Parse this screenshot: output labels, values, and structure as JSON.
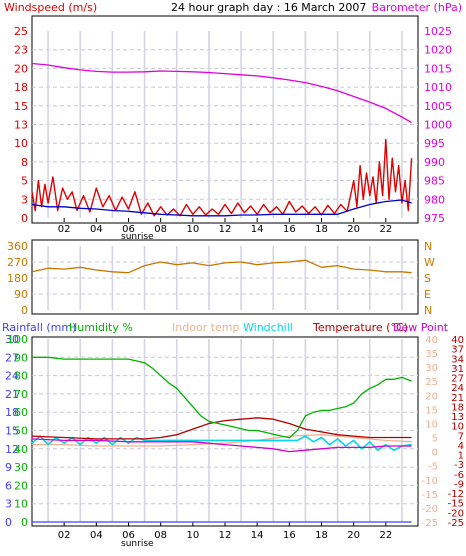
{
  "colors": {
    "wind": "#e00000",
    "baro": "#e000e0",
    "gust_avg": "#0000c8",
    "dir": "#c87800",
    "rain": "#4040ff",
    "humidity": "#00b400",
    "indoor": "#f0b090",
    "windchill": "#00d8e8",
    "temperature": "#b40000",
    "dewpoint": "#d000d0",
    "grid": "#c8c8d8",
    "vgrid": "#d4d4e4",
    "axis": "#000000"
  },
  "chart_data": [
    {
      "type": "line",
      "title": "24 hour graph day : 16 March 2007",
      "left_label": "Windspeed (m/s)",
      "right_label": "Barometer (hPa)",
      "left_ticks": [
        "0",
        "3",
        "5",
        "8",
        "10",
        "13",
        "15",
        "18",
        "20",
        "23",
        "25"
      ],
      "right_ticks": [
        "975",
        "980",
        "985",
        "990",
        "995",
        "1000",
        "1005",
        "1010",
        "1015",
        "1020",
        "1025"
      ],
      "x_ticks": [
        "02",
        "04",
        "06",
        "08",
        "10",
        "12",
        "14",
        "16",
        "18",
        "20",
        "22"
      ],
      "sunrise_label": "sunrise",
      "sunrise_hour": 5.8,
      "xlim": [
        0,
        24
      ],
      "ylim_left": [
        0,
        25
      ],
      "ylim_right": [
        975,
        1025
      ],
      "grid": true,
      "series": [
        {
          "key": "baro",
          "axis": "right",
          "hours": [
            0,
            1,
            2,
            3,
            4,
            5,
            6,
            7,
            8,
            9,
            10,
            11,
            12,
            13,
            14,
            15,
            16,
            17,
            18,
            19,
            20,
            21,
            22,
            23,
            23.6
          ],
          "values": [
            1016.3,
            1015.9,
            1015.2,
            1014.6,
            1014.2,
            1014.0,
            1014.0,
            1014.1,
            1014.3,
            1014.2,
            1014.1,
            1013.9,
            1013.6,
            1013.3,
            1013.0,
            1012.5,
            1011.9,
            1011.2,
            1010.2,
            1009.0,
            1007.5,
            1006.0,
            1004.3,
            1002.0,
            1000.5
          ]
        },
        {
          "key": "wind",
          "axis": "left",
          "hours": [
            0,
            0.2,
            0.4,
            0.6,
            0.8,
            1.0,
            1.3,
            1.6,
            1.9,
            2.2,
            2.5,
            2.8,
            3.2,
            3.6,
            4.0,
            4.4,
            4.8,
            5.2,
            5.6,
            6.0,
            6.4,
            6.8,
            7.2,
            7.6,
            8.0,
            8.4,
            8.8,
            9.2,
            9.6,
            10.0,
            10.4,
            10.8,
            11.2,
            11.6,
            12.0,
            12.4,
            12.8,
            13.2,
            13.6,
            14.0,
            14.4,
            14.8,
            15.2,
            15.6,
            16.0,
            16.4,
            16.8,
            17.2,
            17.6,
            18.0,
            18.4,
            18.8,
            19.2,
            19.6,
            20.0,
            20.2,
            20.4,
            20.6,
            20.8,
            21.0,
            21.2,
            21.4,
            21.6,
            21.8,
            22.0,
            22.2,
            22.4,
            22.6,
            22.8,
            23.0,
            23.2,
            23.4,
            23.6
          ],
          "values": [
            3.5,
            1.0,
            5.0,
            1.5,
            4.5,
            2.0,
            5.5,
            1.0,
            4.0,
            2.5,
            3.5,
            1.0,
            3.0,
            0.8,
            4.0,
            1.5,
            3.0,
            1.0,
            2.8,
            1.2,
            3.5,
            0.5,
            2.0,
            0.3,
            1.5,
            0.4,
            1.2,
            0.3,
            1.8,
            0.5,
            1.5,
            0.4,
            1.2,
            0.5,
            1.8,
            0.6,
            2.0,
            0.7,
            1.6,
            0.5,
            1.8,
            0.7,
            1.5,
            0.5,
            2.2,
            0.8,
            1.6,
            0.6,
            1.5,
            0.4,
            1.7,
            0.6,
            1.8,
            0.9,
            5.0,
            1.5,
            7.0,
            2.5,
            6.0,
            3.0,
            5.5,
            2.0,
            7.5,
            3.0,
            10.5,
            2.5,
            8.0,
            3.5,
            7.0,
            2.0,
            5.0,
            1.0,
            8.0
          ]
        },
        {
          "key": "gust_avg",
          "axis": "left",
          "hours": [
            0,
            1,
            2,
            3,
            4,
            5,
            6,
            7,
            8,
            9,
            10,
            11,
            12,
            13,
            14,
            15,
            16,
            17,
            18,
            19,
            20,
            21,
            22,
            23,
            23.6
          ],
          "values": [
            1.8,
            1.5,
            1.5,
            1.3,
            1.2,
            1.0,
            0.9,
            0.7,
            0.5,
            0.4,
            0.3,
            0.3,
            0.3,
            0.4,
            0.4,
            0.5,
            0.5,
            0.5,
            0.5,
            0.5,
            1.2,
            1.8,
            2.2,
            2.4,
            2.0
          ]
        }
      ]
    },
    {
      "type": "line",
      "title": "",
      "left_ticks": [
        "360",
        "270",
        "180",
        "90",
        "0"
      ],
      "right_ticks": [
        "N",
        "W",
        "S",
        "E",
        "N"
      ],
      "ylim": [
        0,
        360
      ],
      "xlim": [
        0,
        24
      ],
      "grid": true,
      "series": [
        {
          "key": "dir",
          "hours": [
            0,
            1,
            2,
            3,
            4,
            5,
            6,
            7,
            8,
            9,
            10,
            11,
            12,
            13,
            14,
            15,
            16,
            17,
            18,
            19,
            20,
            21,
            22,
            23,
            23.6
          ],
          "values": [
            215,
            235,
            230,
            240,
            225,
            215,
            210,
            250,
            270,
            255,
            265,
            250,
            265,
            270,
            255,
            265,
            270,
            280,
            240,
            250,
            230,
            225,
            215,
            215,
            210
          ]
        }
      ]
    },
    {
      "type": "line",
      "title": "",
      "legend": [
        "Rainfall (mm)",
        "Humidity %",
        "Indoor temp",
        "Windchill",
        "Temperature (°C)",
        "Dew Point"
      ],
      "rain_ticks": [
        "0",
        "3",
        "6",
        "9",
        "12",
        "15",
        "18",
        "21",
        "24",
        "27",
        "30"
      ],
      "humidity_ticks": [
        "0",
        "10",
        "20",
        "30",
        "40",
        "50",
        "60",
        "70",
        "80",
        "90",
        "100"
      ],
      "indoor_ticks": [
        "-25",
        "-20",
        "-15",
        "-10",
        "-5",
        "0",
        "5",
        "10",
        "15",
        "20",
        "25",
        "30",
        "35",
        "40"
      ],
      "temp_ticks": [
        "-25",
        "-20",
        "-15",
        "-12",
        "-9",
        "-6",
        "-3",
        "1",
        "4",
        "7",
        "10",
        "13",
        "18",
        "21",
        "24",
        "27",
        "31",
        "34",
        "37",
        "40"
      ],
      "x_ticks": [
        "02",
        "04",
        "06",
        "08",
        "10",
        "12",
        "14",
        "16",
        "18",
        "20",
        "22"
      ],
      "sunrise_label": "sunrise",
      "xlim": [
        0,
        24
      ],
      "ylim_humidity": [
        0,
        100
      ],
      "ylim_temp": [
        -25,
        40
      ],
      "grid": true,
      "series": [
        {
          "key": "humidity",
          "axis": "humidity",
          "hours": [
            0,
            1,
            2,
            3,
            4,
            5,
            6,
            7,
            7.5,
            8,
            8.5,
            9,
            9.5,
            10,
            10.5,
            11,
            11.5,
            12,
            12.5,
            13,
            13.5,
            14,
            14.5,
            15,
            15.5,
            16,
            16.5,
            17,
            17.5,
            18,
            18.5,
            19,
            19.5,
            20,
            20.5,
            21,
            21.5,
            22,
            22.5,
            23,
            23.6
          ],
          "values": [
            90,
            90,
            89,
            89,
            89,
            89,
            89,
            87,
            84,
            80,
            76,
            73,
            68,
            63,
            58,
            55,
            54,
            53,
            52,
            51,
            50,
            50,
            49,
            48,
            47,
            46,
            50,
            58,
            60,
            61,
            61,
            62,
            63,
            65,
            70,
            73,
            75,
            78,
            78,
            79,
            77
          ]
        },
        {
          "key": "temperature",
          "axis": "temp",
          "hours": [
            0,
            2,
            4,
            6,
            7,
            8,
            9,
            10,
            11,
            12,
            13,
            14,
            15,
            16,
            17,
            18,
            19,
            20,
            21,
            22,
            23,
            23.6
          ],
          "values": [
            5.5,
            5.0,
            4.5,
            4.5,
            4.5,
            5.0,
            6.0,
            8.0,
            10.0,
            11.0,
            11.5,
            12.0,
            11.5,
            10.0,
            8.0,
            7.0,
            6.0,
            5.5,
            5.0,
            5.0,
            5.0,
            5.0
          ]
        },
        {
          "key": "dewpoint",
          "axis": "temp",
          "hours": [
            0,
            2,
            4,
            6,
            7,
            8,
            9,
            10,
            11,
            12,
            13,
            14,
            15,
            16,
            17,
            18,
            19,
            20,
            21,
            22,
            23,
            23.6
          ],
          "values": [
            4.5,
            4.0,
            4.0,
            3.5,
            3.5,
            3.5,
            3.5,
            3.5,
            3.0,
            2.5,
            2.0,
            1.5,
            1.0,
            0.0,
            0.5,
            1.0,
            1.5,
            1.5,
            1.5,
            2.0,
            2.0,
            2.0
          ]
        },
        {
          "key": "indoor",
          "axis": "temp",
          "hours": [
            0,
            2,
            4,
            6,
            8,
            10,
            12,
            14,
            16,
            18,
            20,
            22,
            23.6
          ],
          "values": [
            2.5,
            2.5,
            2.0,
            2.0,
            2.0,
            2.5,
            3.0,
            4.0,
            5.5,
            6.0,
            5.0,
            4.0,
            3.5
          ]
        },
        {
          "key": "windchill",
          "axis": "temp",
          "hours": [
            0,
            0.5,
            1,
            1.5,
            2,
            2.5,
            3,
            3.5,
            4,
            4.5,
            5,
            5.5,
            6,
            6.5,
            7,
            16.5,
            17,
            17.5,
            18,
            18.5,
            19,
            19.5,
            20,
            20.5,
            21,
            21.5,
            22,
            22.5,
            23,
            23.6
          ],
          "values": [
            3.0,
            5.5,
            2.5,
            5.0,
            3.0,
            5.0,
            2.5,
            5.0,
            3.0,
            5.0,
            2.5,
            5.0,
            3.0,
            5.0,
            4.0,
            4.0,
            5.5,
            3.5,
            5.0,
            2.5,
            4.5,
            2.0,
            4.0,
            1.0,
            3.5,
            0.5,
            2.5,
            0.5,
            2.0,
            2.5
          ]
        },
        {
          "key": "rain",
          "axis": "rain",
          "hours": [
            0,
            23.6
          ],
          "values": [
            0,
            0
          ]
        }
      ]
    }
  ]
}
